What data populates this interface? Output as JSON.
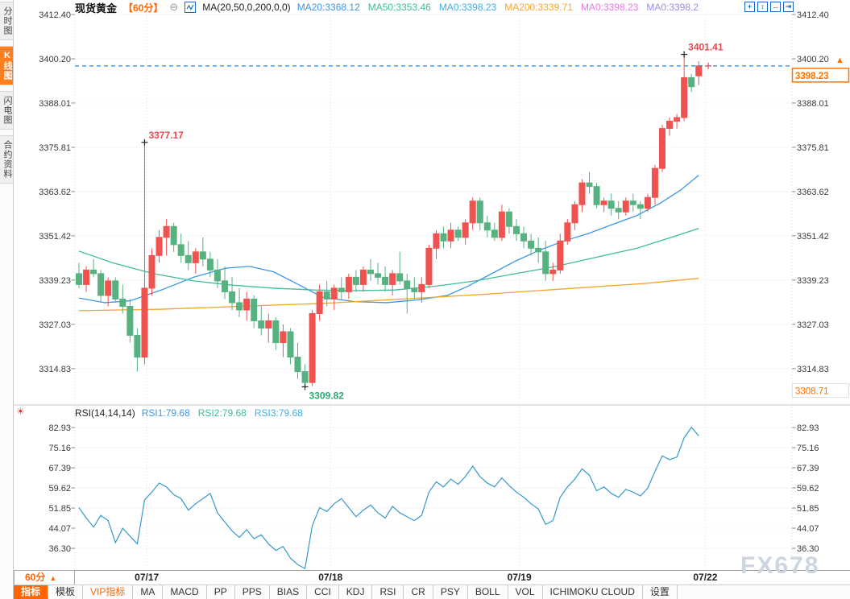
{
  "watermark": "FX678",
  "sidebar": {
    "tabs": [
      {
        "name": "time-chart",
        "label": "分时图",
        "active": false
      },
      {
        "name": "kline-chart",
        "label": "K线图",
        "active": true
      },
      {
        "name": "flash-chart",
        "label": "闪电图",
        "active": false
      },
      {
        "name": "contract-info",
        "label": "合约资料",
        "active": false
      }
    ]
  },
  "header": {
    "title": "现货黄金",
    "period_tag": "【60分】",
    "collapse_icon": "⊖",
    "ma_formula": "MA(20,50,0,200,0,0)",
    "ma_values": [
      {
        "label": "MA20:3368.12",
        "color": "#3d96e6"
      },
      {
        "label": "MA50:3353.46",
        "color": "#3dbd9b"
      },
      {
        "label": "MA0:3398.23",
        "color": "#41aee8"
      },
      {
        "label": "MA200:3339.71",
        "color": "#f6a52d"
      },
      {
        "label": "MA0:3398.23",
        "color": "#e879e8"
      },
      {
        "label": "MA0:3398.2",
        "color": "#9b8cf0"
      }
    ],
    "window_icons": [
      {
        "name": "crosshair-icon",
        "glyph": "+"
      },
      {
        "name": "y-axis-scale-icon",
        "glyph": "↕"
      },
      {
        "name": "x-axis-scale-icon",
        "glyph": "↔"
      },
      {
        "name": "pan-right-icon",
        "glyph": "⇥"
      }
    ]
  },
  "rsi": {
    "icon": "☀",
    "formula": "RSI(14,14,14)",
    "values": [
      {
        "label": "RSI1:79.68",
        "color": "#3d96e6"
      },
      {
        "label": "RSI2:79.68",
        "color": "#3dbd9b"
      },
      {
        "label": "RSI3:79.68",
        "color": "#41aee8"
      }
    ]
  },
  "x_axis": {
    "period_label": "60分",
    "period_arrow": "▲",
    "labels": [
      {
        "label": "07/17",
        "index": 9.3
      },
      {
        "label": "07/18",
        "index": 34.5
      },
      {
        "label": "07/19",
        "index": 60.4
      },
      {
        "label": "07/22",
        "index": 85.9
      }
    ]
  },
  "bottom_toolbar": {
    "items": [
      {
        "name": "indicators",
        "label": "指标",
        "active": true
      },
      {
        "name": "templates",
        "label": "模板"
      },
      {
        "name": "vip-indicators",
        "label": "VIP指标",
        "vip": true
      },
      {
        "name": "ma",
        "label": "MA"
      },
      {
        "name": "macd",
        "label": "MACD"
      },
      {
        "name": "pp",
        "label": "PP"
      },
      {
        "name": "pps",
        "label": "PPS"
      },
      {
        "name": "bias",
        "label": "BIAS"
      },
      {
        "name": "cci",
        "label": "CCI"
      },
      {
        "name": "kdj",
        "label": "KDJ"
      },
      {
        "name": "rsi",
        "label": "RSI"
      },
      {
        "name": "cr",
        "label": "CR"
      },
      {
        "name": "psy",
        "label": "PSY"
      },
      {
        "name": "boll",
        "label": "BOLL"
      },
      {
        "name": "vol",
        "label": "VOL"
      },
      {
        "name": "ichimoku-cloud",
        "label": "ICHIMOKU CLOUD"
      },
      {
        "name": "settings",
        "label": "设置"
      }
    ]
  },
  "chart_data": {
    "type": "candlestick",
    "title": "现货黄金 60分 K线图",
    "main_pane": {
      "y_ticks": [
        3412.4,
        3400.2,
        3388.01,
        3375.81,
        3363.62,
        3351.42,
        3339.23,
        3327.03,
        3314.83
      ],
      "up_color": "#ef5350",
      "down_color": "#56b280",
      "candles": [
        [
          3341,
          3344,
          3337,
          3338
        ],
        [
          3338,
          3343,
          3336,
          3342
        ],
        [
          3342,
          3345,
          3340,
          3341
        ],
        [
          3341,
          3342,
          3333,
          3335
        ],
        [
          3335,
          3340,
          3332,
          3339
        ],
        [
          3339,
          3340,
          3333,
          3334
        ],
        [
          3334,
          3338,
          3330,
          3332
        ],
        [
          3332,
          3334,
          3322,
          3324
        ],
        [
          3324,
          3326,
          3314,
          3318
        ],
        [
          3318,
          3377.17,
          3316,
          3337
        ],
        [
          3337,
          3348,
          3335,
          3346
        ],
        [
          3346,
          3353,
          3344,
          3351
        ],
        [
          3351,
          3356,
          3346,
          3354
        ],
        [
          3354,
          3355,
          3347,
          3349
        ],
        [
          3349,
          3352,
          3344,
          3346
        ],
        [
          3346,
          3350,
          3342,
          3344
        ],
        [
          3344,
          3348,
          3341,
          3347
        ],
        [
          3347,
          3351,
          3343,
          3345
        ],
        [
          3345,
          3347,
          3340,
          3342
        ],
        [
          3342,
          3345,
          3337,
          3339
        ],
        [
          3339,
          3343,
          3334,
          3336
        ],
        [
          3336,
          3340,
          3331,
          3333
        ],
        [
          3333,
          3337,
          3329,
          3331
        ],
        [
          3331,
          3336,
          3328,
          3334
        ],
        [
          3334,
          3335,
          3326,
          3328
        ],
        [
          3328,
          3332,
          3324,
          3326
        ],
        [
          3326,
          3330,
          3322,
          3328
        ],
        [
          3328,
          3329,
          3320,
          3322
        ],
        [
          3322,
          3327,
          3318,
          3325
        ],
        [
          3325,
          3326,
          3316,
          3318
        ],
        [
          3318,
          3322,
          3312,
          3314
        ],
        [
          3314,
          3316,
          3309.82,
          3311
        ],
        [
          3311,
          3331,
          3310,
          3330
        ],
        [
          3330,
          3338,
          3328,
          3336
        ],
        [
          3336,
          3339,
          3332,
          3334
        ],
        [
          3334,
          3338,
          3331,
          3337
        ],
        [
          3337,
          3340,
          3334,
          3336
        ],
        [
          3336,
          3341,
          3334,
          3340
        ],
        [
          3340,
          3342,
          3336,
          3338
        ],
        [
          3338,
          3343,
          3336,
          3342
        ],
        [
          3342,
          3345,
          3339,
          3341
        ],
        [
          3341,
          3344,
          3338,
          3340
        ],
        [
          3340,
          3343,
          3336,
          3338
        ],
        [
          3338,
          3342,
          3335,
          3341
        ],
        [
          3341,
          3347,
          3338,
          3339
        ],
        [
          3339,
          3341,
          3330,
          3337
        ],
        [
          3337,
          3340,
          3334,
          3336
        ],
        [
          3336,
          3340,
          3333,
          3338
        ],
        [
          3338,
          3349,
          3337,
          3348
        ],
        [
          3348,
          3353,
          3345,
          3352
        ],
        [
          3352,
          3354,
          3348,
          3350
        ],
        [
          3350,
          3355,
          3348,
          3353
        ],
        [
          3353,
          3354,
          3350,
          3351
        ],
        [
          3351,
          3356,
          3349,
          3355
        ],
        [
          3355,
          3362,
          3353,
          3361
        ],
        [
          3361,
          3362,
          3353,
          3355
        ],
        [
          3355,
          3357,
          3351,
          3353
        ],
        [
          3353,
          3355,
          3350,
          3351
        ],
        [
          3351,
          3360,
          3350,
          3358
        ],
        [
          3358,
          3359,
          3352,
          3354
        ],
        [
          3354,
          3356,
          3350,
          3352
        ],
        [
          3352,
          3354,
          3348,
          3350
        ],
        [
          3350,
          3352,
          3346,
          3348
        ],
        [
          3348,
          3351,
          3344,
          3347
        ],
        [
          3347,
          3350,
          3339,
          3341
        ],
        [
          3341,
          3344,
          3339,
          3342
        ],
        [
          3342,
          3352,
          3341,
          3350
        ],
        [
          3350,
          3356,
          3349,
          3355
        ],
        [
          3355,
          3361,
          3353,
          3360
        ],
        [
          3360,
          3367,
          3358,
          3366
        ],
        [
          3366,
          3369,
          3363,
          3365
        ],
        [
          3365,
          3366,
          3359,
          3360
        ],
        [
          3360,
          3362,
          3358,
          3361
        ],
        [
          3361,
          3363,
          3357,
          3359
        ],
        [
          3359,
          3361,
          3356,
          3358
        ],
        [
          3358,
          3362,
          3357,
          3361
        ],
        [
          3361,
          3363,
          3358,
          3360
        ],
        [
          3360,
          3361,
          3356,
          3359
        ],
        [
          3359,
          3363,
          3358,
          3362
        ],
        [
          3362,
          3371,
          3360,
          3370
        ],
        [
          3370,
          3382,
          3369,
          3381
        ],
        [
          3381,
          3384,
          3379,
          3383
        ],
        [
          3383,
          3385,
          3381,
          3384
        ],
        [
          3384,
          3401.41,
          3383,
          3395
        ],
        [
          3395,
          3396,
          3391,
          3392.5
        ],
        [
          3395.5,
          3399.5,
          3393,
          3398.23
        ]
      ],
      "ma_lines": [
        {
          "name": "MA20",
          "color": "#3d96e6",
          "points": [
            [
              0,
              3334.3
            ],
            [
              3.5,
              3333
            ],
            [
              7,
              3333.5
            ],
            [
              11.3,
              3336.5
            ],
            [
              15.7,
              3340
            ],
            [
              20.1,
              3342.5
            ],
            [
              23.4,
              3343
            ],
            [
              26.7,
              3341.5
            ],
            [
              30.1,
              3338
            ],
            [
              33.4,
              3334.5
            ],
            [
              37.8,
              3333.3
            ],
            [
              42.2,
              3333
            ],
            [
              46.6,
              3333.8
            ],
            [
              50.5,
              3335
            ],
            [
              53.3,
              3337.5
            ],
            [
              56.6,
              3341
            ],
            [
              59.9,
              3344.5
            ],
            [
              63.2,
              3347.5
            ],
            [
              66.5,
              3350
            ],
            [
              69.8,
              3352
            ],
            [
              73.1,
              3354.5
            ],
            [
              76.5,
              3357
            ],
            [
              79.8,
              3360.5
            ],
            [
              82.5,
              3364
            ],
            [
              85,
              3368.12
            ]
          ]
        },
        {
          "name": "MA50",
          "color": "#3dbd9b",
          "points": [
            [
              0,
              3347.2
            ],
            [
              4.6,
              3344
            ],
            [
              10.2,
              3341
            ],
            [
              15.7,
              3339
            ],
            [
              21.2,
              3337.8
            ],
            [
              26.7,
              3337
            ],
            [
              32.3,
              3336.5
            ],
            [
              37.8,
              3336.3
            ],
            [
              43.3,
              3336.5
            ],
            [
              48.8,
              3337.5
            ],
            [
              54.4,
              3339
            ],
            [
              59.9,
              3341
            ],
            [
              65.4,
              3343
            ],
            [
              70.9,
              3345.5
            ],
            [
              76.5,
              3348
            ],
            [
              80.9,
              3350.8
            ],
            [
              85,
              3353.46
            ]
          ]
        },
        {
          "name": "MA200",
          "color": "#f6a52d",
          "points": [
            [
              0,
              3330.8
            ],
            [
              11.3,
              3331.2
            ],
            [
              22.3,
              3332
            ],
            [
              33.4,
              3332.8
            ],
            [
              44.4,
              3334
            ],
            [
              55.5,
              3335.3
            ],
            [
              66.5,
              3336.8
            ],
            [
              77.6,
              3338.3
            ],
            [
              85,
              3339.71
            ]
          ]
        }
      ],
      "annotations": [
        {
          "index": 9,
          "price": 3377.17,
          "label": "3377.17",
          "color": "#e8484f",
          "cross": "#222222",
          "placement": "above"
        },
        {
          "index": 83,
          "price": 3401.41,
          "label": "3401.41",
          "color": "#e8484f",
          "cross": "#222222",
          "placement": "above"
        },
        {
          "index": 31,
          "price": 3309.82,
          "label": "3309.82",
          "color": "#2faa72",
          "cross": "#222222",
          "placement": "below"
        },
        {
          "index": 86.3,
          "price": 3398.23,
          "label": "",
          "color": "#e8484f",
          "cross": "#e8484f",
          "placement": "above"
        }
      ],
      "current_price": {
        "label": "3398.23",
        "value": 3398.23,
        "arrow": "▲",
        "color": "#ff7300",
        "line_color": "#2287e8"
      },
      "low_badge": {
        "label": "3308.71",
        "value": 3308.71,
        "color": "#ff7300"
      }
    },
    "rsi_pane": {
      "y_ticks": [
        82.93,
        75.16,
        67.39,
        59.62,
        51.85,
        44.07,
        36.3
      ],
      "color": "#3598cb",
      "values": [
        52,
        48,
        44.5,
        49,
        47,
        38.5,
        44,
        41,
        38,
        55,
        58,
        61.5,
        60,
        57,
        55.5,
        51,
        53.5,
        55.5,
        57.5,
        50,
        46.5,
        43,
        40.5,
        43.5,
        40,
        41.5,
        38,
        35.5,
        37,
        32.5,
        30,
        28.5,
        45,
        52,
        50.5,
        53.5,
        55.5,
        52,
        48.5,
        51,
        53,
        50,
        48,
        52.5,
        50,
        48.5,
        47,
        49,
        58,
        62,
        60,
        63,
        61,
        64,
        68,
        64,
        61.5,
        60,
        63.5,
        60.5,
        58,
        56,
        53.5,
        51.5,
        45.5,
        47,
        56,
        60,
        63,
        67,
        64.5,
        58.5,
        60,
        57.5,
        56,
        59,
        58,
        56.5,
        59.5,
        66,
        72,
        70.5,
        71.5,
        79,
        83,
        79.68
      ]
    }
  }
}
